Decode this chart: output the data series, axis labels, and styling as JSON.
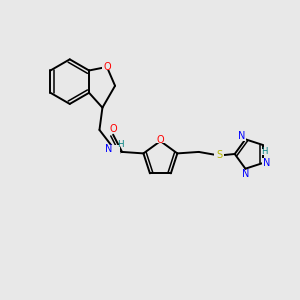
{
  "background_color": "#e8e8e8",
  "bond_color": "#000000",
  "bond_lw": 1.4,
  "dbl_lw": 1.1,
  "atom_colors": {
    "C": "#000000",
    "N": "#0000ff",
    "O": "#ff0000",
    "S": "#b8b800",
    "H": "#008080"
  },
  "font_size": 7.0
}
